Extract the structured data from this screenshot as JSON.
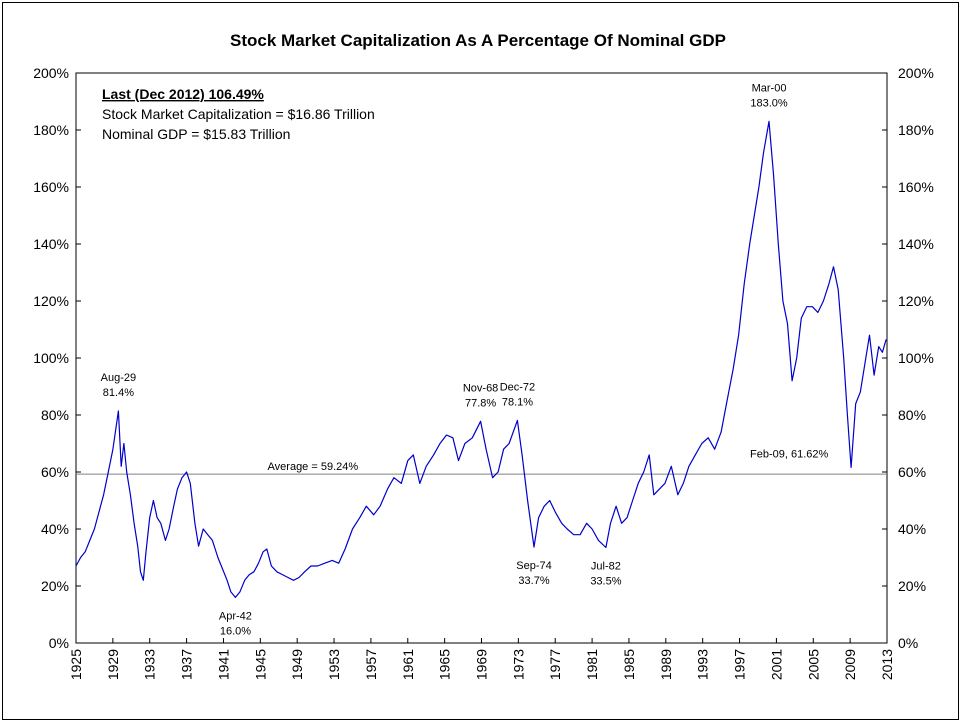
{
  "chart_data": {
    "type": "line",
    "title": "Stock Market Capitalization As A Percentage Of Nominal GDP",
    "xlabel": "",
    "ylabel": "",
    "xlim": [
      1925,
      2013
    ],
    "ylim": [
      0,
      200
    ],
    "x_ticks": [
      "1925",
      "1929",
      "1933",
      "1937",
      "1941",
      "1945",
      "1949",
      "1953",
      "1957",
      "1961",
      "1965",
      "1969",
      "1973",
      "1977",
      "1981",
      "1985",
      "1989",
      "1993",
      "1997",
      "2001",
      "2005",
      "2009",
      "2013"
    ],
    "y_ticks": [
      "0%",
      "20%",
      "40%",
      "60%",
      "80%",
      "100%",
      "120%",
      "140%",
      "160%",
      "180%",
      "200%"
    ],
    "grid": false,
    "secondary_y_axis": true,
    "info_box": {
      "headline": "Last (Dec 2012) 106.49%",
      "line1": "Stock Market Capitalization = $16.86 Trillion",
      "line2": "Nominal GDP = $15.83 Trillion"
    },
    "average": {
      "value": 59.24,
      "label": "Average = 59.24%"
    },
    "annotations": [
      {
        "date": "Aug-29",
        "value": "81.4%",
        "x": 1929.6,
        "y": 81.4,
        "pos": "above"
      },
      {
        "date": "Apr-42",
        "value": "16.0%",
        "x": 1942.3,
        "y": 16.0,
        "pos": "below"
      },
      {
        "date": "Nov-68",
        "value": "77.8%",
        "x": 1968.9,
        "y": 77.8,
        "pos": "above"
      },
      {
        "date": "Dec-72",
        "value": "78.1%",
        "x": 1972.9,
        "y": 78.1,
        "pos": "above"
      },
      {
        "date": "Sep-74",
        "value": "33.7%",
        "x": 1974.7,
        "y": 33.7,
        "pos": "below"
      },
      {
        "date": "Jul-82",
        "value": "33.5%",
        "x": 1982.5,
        "y": 33.5,
        "pos": "below"
      },
      {
        "date": "Mar-00",
        "value": "183.0%",
        "x": 2000.2,
        "y": 183.0,
        "pos": "above"
      },
      {
        "date": "Feb-09",
        "label": "Feb-09, 61.62%",
        "x": 2009.1,
        "y": 61.62,
        "pos": "right"
      }
    ],
    "series": [
      {
        "color": "#0000cc",
        "points": [
          [
            1925.0,
            27
          ],
          [
            1925.5,
            30
          ],
          [
            1926.0,
            32
          ],
          [
            1926.5,
            36
          ],
          [
            1927.0,
            40
          ],
          [
            1927.5,
            46
          ],
          [
            1928.0,
            52
          ],
          [
            1928.5,
            60
          ],
          [
            1929.0,
            68
          ],
          [
            1929.6,
            81.4
          ],
          [
            1929.9,
            62
          ],
          [
            1930.2,
            70
          ],
          [
            1930.5,
            60
          ],
          [
            1930.9,
            52
          ],
          [
            1931.3,
            42
          ],
          [
            1931.7,
            34
          ],
          [
            1932.0,
            25
          ],
          [
            1932.3,
            22
          ],
          [
            1932.6,
            32
          ],
          [
            1933.0,
            44
          ],
          [
            1933.4,
            50
          ],
          [
            1933.8,
            44
          ],
          [
            1934.2,
            42
          ],
          [
            1934.7,
            36
          ],
          [
            1935.1,
            40
          ],
          [
            1935.6,
            48
          ],
          [
            1936.0,
            54
          ],
          [
            1936.5,
            58
          ],
          [
            1937.0,
            60
          ],
          [
            1937.4,
            56
          ],
          [
            1937.9,
            42
          ],
          [
            1938.3,
            34
          ],
          [
            1938.8,
            40
          ],
          [
            1939.3,
            38
          ],
          [
            1939.8,
            36
          ],
          [
            1940.4,
            30
          ],
          [
            1940.9,
            26
          ],
          [
            1941.4,
            22
          ],
          [
            1941.8,
            18
          ],
          [
            1942.3,
            16.0
          ],
          [
            1942.8,
            18
          ],
          [
            1943.3,
            22
          ],
          [
            1943.8,
            24
          ],
          [
            1944.3,
            25
          ],
          [
            1944.8,
            28
          ],
          [
            1945.3,
            32
          ],
          [
            1945.7,
            33
          ],
          [
            1946.2,
            27
          ],
          [
            1946.8,
            25
          ],
          [
            1947.4,
            24
          ],
          [
            1948.0,
            23
          ],
          [
            1948.6,
            22
          ],
          [
            1949.2,
            23
          ],
          [
            1949.8,
            25
          ],
          [
            1950.5,
            27
          ],
          [
            1951.2,
            27
          ],
          [
            1952.0,
            28
          ],
          [
            1952.8,
            29
          ],
          [
            1953.5,
            28
          ],
          [
            1954.2,
            33
          ],
          [
            1955.0,
            40
          ],
          [
            1955.8,
            44
          ],
          [
            1956.5,
            48
          ],
          [
            1957.3,
            45
          ],
          [
            1958.0,
            48
          ],
          [
            1958.8,
            54
          ],
          [
            1959.5,
            58
          ],
          [
            1960.3,
            56
          ],
          [
            1961.0,
            64
          ],
          [
            1961.6,
            66
          ],
          [
            1962.3,
            56
          ],
          [
            1963.0,
            62
          ],
          [
            1963.8,
            66
          ],
          [
            1964.5,
            70
          ],
          [
            1965.2,
            73
          ],
          [
            1965.9,
            72
          ],
          [
            1966.5,
            64
          ],
          [
            1967.2,
            70
          ],
          [
            1968.0,
            72
          ],
          [
            1968.9,
            77.8
          ],
          [
            1969.5,
            68
          ],
          [
            1970.2,
            58
          ],
          [
            1970.8,
            60
          ],
          [
            1971.4,
            68
          ],
          [
            1972.0,
            70
          ],
          [
            1972.9,
            78.1
          ],
          [
            1973.4,
            66
          ],
          [
            1974.0,
            50
          ],
          [
            1974.7,
            33.7
          ],
          [
            1975.2,
            44
          ],
          [
            1975.8,
            48
          ],
          [
            1976.4,
            50
          ],
          [
            1977.0,
            46
          ],
          [
            1977.7,
            42
          ],
          [
            1978.3,
            40
          ],
          [
            1979.0,
            38
          ],
          [
            1979.7,
            38
          ],
          [
            1980.4,
            42
          ],
          [
            1981.0,
            40
          ],
          [
            1981.7,
            36
          ],
          [
            1982.5,
            33.5
          ],
          [
            1983.0,
            42
          ],
          [
            1983.6,
            48
          ],
          [
            1984.2,
            42
          ],
          [
            1984.8,
            44
          ],
          [
            1985.4,
            50
          ],
          [
            1986.0,
            56
          ],
          [
            1986.6,
            60
          ],
          [
            1987.2,
            66
          ],
          [
            1987.7,
            52
          ],
          [
            1988.3,
            54
          ],
          [
            1988.9,
            56
          ],
          [
            1989.6,
            62
          ],
          [
            1990.3,
            52
          ],
          [
            1990.9,
            56
          ],
          [
            1991.5,
            62
          ],
          [
            1992.2,
            66
          ],
          [
            1992.9,
            70
          ],
          [
            1993.6,
            72
          ],
          [
            1994.3,
            68
          ],
          [
            1995.0,
            74
          ],
          [
            1995.7,
            86
          ],
          [
            1996.3,
            96
          ],
          [
            1996.9,
            108
          ],
          [
            1997.5,
            126
          ],
          [
            1998.1,
            140
          ],
          [
            1998.6,
            150
          ],
          [
            1999.1,
            160
          ],
          [
            1999.6,
            172
          ],
          [
            2000.2,
            183.0
          ],
          [
            2000.7,
            164
          ],
          [
            2001.2,
            140
          ],
          [
            2001.7,
            120
          ],
          [
            2002.2,
            112
          ],
          [
            2002.7,
            92
          ],
          [
            2003.2,
            100
          ],
          [
            2003.7,
            114
          ],
          [
            2004.3,
            118
          ],
          [
            2004.9,
            118
          ],
          [
            2005.5,
            116
          ],
          [
            2006.1,
            120
          ],
          [
            2006.7,
            126
          ],
          [
            2007.2,
            132
          ],
          [
            2007.7,
            124
          ],
          [
            2008.3,
            100
          ],
          [
            2008.7,
            80
          ],
          [
            2009.1,
            61.62
          ],
          [
            2009.6,
            84
          ],
          [
            2010.1,
            88
          ],
          [
            2010.6,
            98
          ],
          [
            2011.1,
            108
          ],
          [
            2011.6,
            94
          ],
          [
            2012.1,
            104
          ],
          [
            2012.5,
            102
          ],
          [
            2012.9,
            106.49
          ]
        ]
      }
    ]
  }
}
